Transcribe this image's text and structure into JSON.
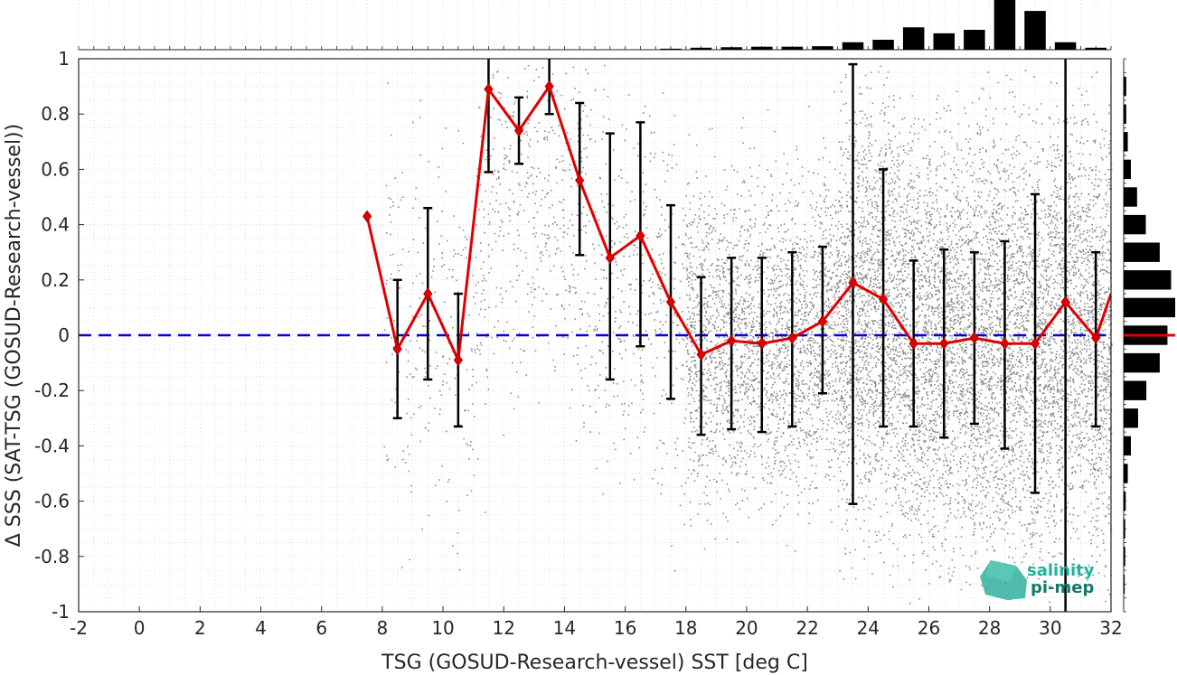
{
  "chart_data": {
    "type": "scatter",
    "xlabel": "TSG (GOSUD-Research-vessel) SST [deg C]",
    "ylabel": "Δ SSS (SAT-TSG (GOSUD-Research-vessel))",
    "xlim": [
      -2,
      32
    ],
    "ylim": [
      -1,
      1
    ],
    "xticks": [
      -2,
      0,
      2,
      4,
      6,
      8,
      10,
      12,
      14,
      16,
      18,
      20,
      22,
      24,
      26,
      28,
      30,
      32
    ],
    "yticks": [
      -1,
      -0.8,
      -0.6,
      -0.4,
      -0.2,
      0,
      0.2,
      0.4,
      0.6,
      0.8,
      1
    ],
    "grid": true,
    "zero_line": {
      "y": 0,
      "color": "#0000dd",
      "style": "dashed"
    },
    "scatter_color": "#808080",
    "series": [
      {
        "color": "#e00000",
        "marker": "diamond",
        "x": [
          7.5,
          8.5,
          9.5,
          10.5,
          11.5,
          12.5,
          13.5,
          14.5,
          15.5,
          16.5,
          17.5,
          18.5,
          19.5,
          20.5,
          21.5,
          22.5,
          23.5,
          24.5,
          25.5,
          26.5,
          27.5,
          28.5,
          29.5,
          30.5,
          31.5,
          32.0
        ],
        "y": [
          0.43,
          -0.05,
          0.15,
          -0.09,
          0.89,
          0.74,
          0.9,
          0.56,
          0.28,
          0.36,
          0.12,
          -0.07,
          -0.02,
          -0.03,
          -0.01,
          0.05,
          0.19,
          0.13,
          -0.03,
          -0.03,
          -0.01,
          -0.03,
          -0.03,
          0.12,
          -0.01,
          0.15
        ],
        "err_low": [
          null,
          -0.3,
          -0.16,
          -0.33,
          0.59,
          0.62,
          0.8,
          0.29,
          -0.16,
          -0.04,
          -0.23,
          -0.36,
          -0.34,
          -0.35,
          -0.33,
          -0.21,
          -0.61,
          -0.33,
          -0.33,
          -0.37,
          -0.32,
          -0.41,
          -0.57,
          -1.0,
          -0.33,
          null
        ],
        "err_high": [
          null,
          0.2,
          0.46,
          0.15,
          1.0,
          0.86,
          1.0,
          0.84,
          0.73,
          0.77,
          0.47,
          0.21,
          0.28,
          0.28,
          0.3,
          0.32,
          0.98,
          0.6,
          0.27,
          0.31,
          0.3,
          0.34,
          0.51,
          1.0,
          0.3,
          null
        ]
      }
    ],
    "top_histogram": {
      "color": "#000000",
      "bins": [
        17.5,
        18.5,
        19.5,
        20.5,
        21.5,
        22.5,
        23.5,
        24.5,
        25.5,
        26.5,
        27.5,
        28.5,
        29.5,
        30.5,
        31.5
      ],
      "counts": [
        0.02,
        0.04,
        0.05,
        0.06,
        0.06,
        0.07,
        0.15,
        0.2,
        0.45,
        0.33,
        0.4,
        1.0,
        0.78,
        0.15,
        0.04
      ]
    },
    "right_histogram": {
      "color": "#000000",
      "median_color": "#e00000",
      "median": 0,
      "bins": [
        -0.9,
        -0.8,
        -0.7,
        -0.6,
        -0.5,
        -0.4,
        -0.3,
        -0.2,
        -0.1,
        0.0,
        0.1,
        0.2,
        0.3,
        0.4,
        0.5,
        0.6,
        0.7,
        0.8,
        0.9
      ],
      "counts": [
        0.02,
        0.03,
        0.03,
        0.04,
        0.08,
        0.14,
        0.28,
        0.44,
        0.7,
        0.85,
        1.0,
        0.92,
        0.7,
        0.43,
        0.26,
        0.14,
        0.08,
        0.05,
        0.05
      ]
    }
  },
  "logo": {
    "line1": "salinity",
    "line2": "pi-mep"
  }
}
